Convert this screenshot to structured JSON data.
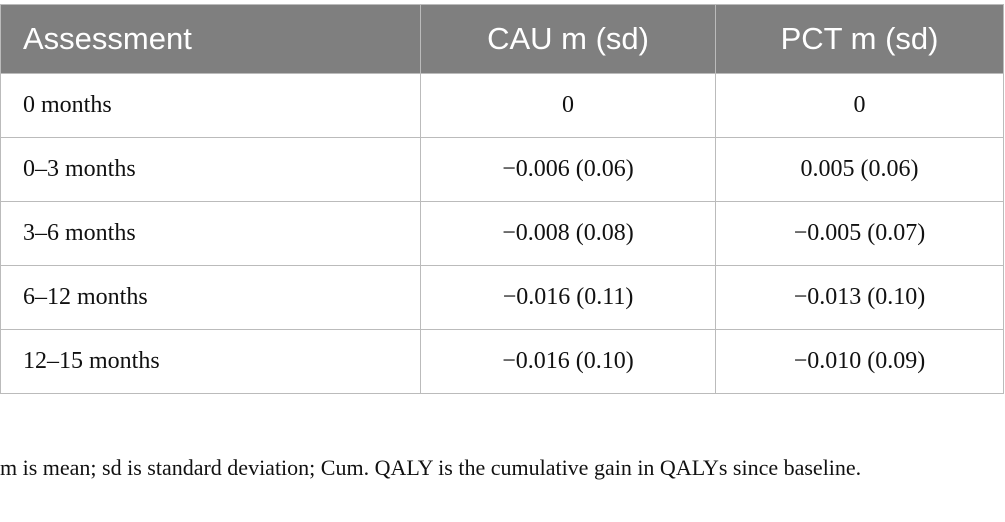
{
  "table": {
    "header": [
      "Assessment",
      "CAU m (sd)",
      "PCT m (sd)"
    ],
    "rows": [
      [
        "0 months",
        "0",
        "0"
      ],
      [
        "0–3 months",
        "−0.006 (0.06)",
        "0.005 (0.06)"
      ],
      [
        "3–6 months",
        "−0.008 (0.08)",
        "−0.005 (0.07)"
      ],
      [
        "6–12 months",
        "−0.016 (0.11)",
        "−0.013 (0.10)"
      ],
      [
        "12–15 months",
        "−0.016 (0.10)",
        "−0.010 (0.09)"
      ]
    ]
  },
  "footnote": "m is mean; sd is standard deviation; Cum. QALY is the cumulative gain in QALYs since baseline."
}
